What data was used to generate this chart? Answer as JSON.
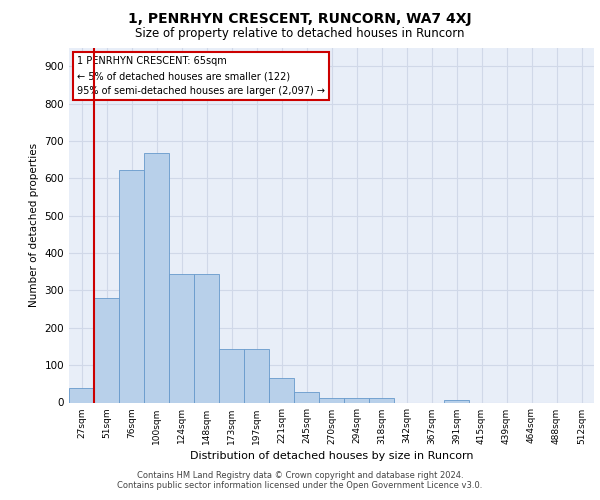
{
  "title": "1, PENRHYN CRESCENT, RUNCORN, WA7 4XJ",
  "subtitle": "Size of property relative to detached houses in Runcorn",
  "xlabel": "Distribution of detached houses by size in Runcorn",
  "ylabel": "Number of detached properties",
  "categories": [
    "27sqm",
    "51sqm",
    "76sqm",
    "100sqm",
    "124sqm",
    "148sqm",
    "173sqm",
    "197sqm",
    "221sqm",
    "245sqm",
    "270sqm",
    "294sqm",
    "318sqm",
    "342sqm",
    "367sqm",
    "391sqm",
    "415sqm",
    "439sqm",
    "464sqm",
    "488sqm",
    "512sqm"
  ],
  "bar_heights": [
    40,
    280,
    622,
    667,
    343,
    343,
    143,
    143,
    65,
    27,
    12,
    12,
    12,
    0,
    0,
    8,
    0,
    0,
    0,
    0,
    0
  ],
  "bar_color": "#b8d0ea",
  "bar_edge_color": "#6699cc",
  "grid_color": "#d0d8e8",
  "bg_color": "#e8eef8",
  "red_line_bin": 1,
  "annotation_title": "1 PENRHYN CRESCENT: 65sqm",
  "annotation_line1": "← 5% of detached houses are smaller (122)",
  "annotation_line2": "95% of semi-detached houses are larger (2,097) →",
  "annotation_box_color": "#ffffff",
  "annotation_border_color": "#cc0000",
  "red_line_color": "#cc0000",
  "ylim": [
    0,
    950
  ],
  "yticks": [
    0,
    100,
    200,
    300,
    400,
    500,
    600,
    700,
    800,
    900
  ],
  "footer_line1": "Contains HM Land Registry data © Crown copyright and database right 2024.",
  "footer_line2": "Contains public sector information licensed under the Open Government Licence v3.0."
}
